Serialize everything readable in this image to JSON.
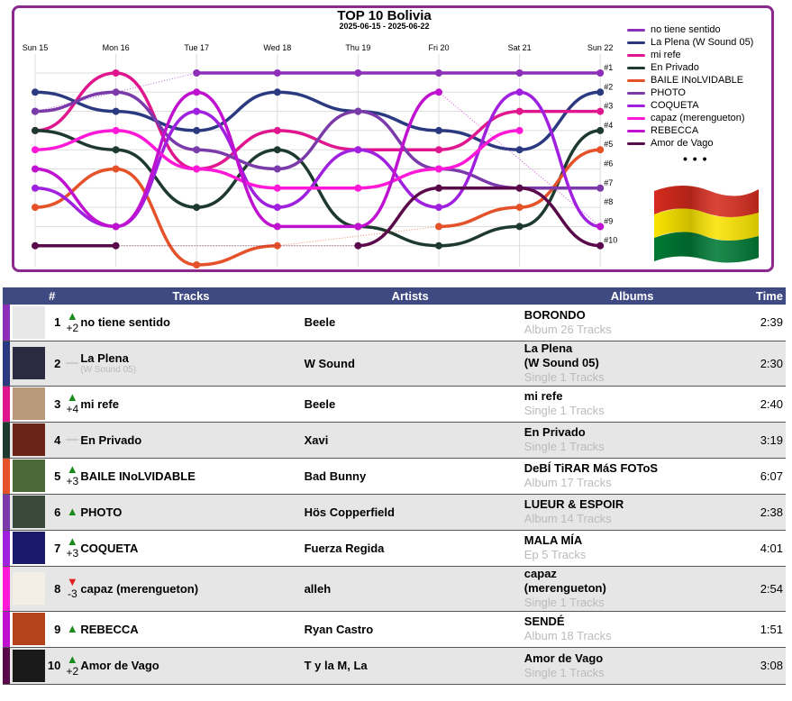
{
  "chart": {
    "title": "TOP 10 Bolivia",
    "subtitle": "2025-06-15 - 2025-06-22",
    "days": [
      "Sun 15",
      "Mon 16",
      "Tue 17",
      "Wed 18",
      "Thu 19",
      "Fri 20",
      "Sat 21",
      "Sun 22"
    ],
    "rank_labels": [
      "#1",
      "#2",
      "#3",
      "#4",
      "#5",
      "#6",
      "#7",
      "#8",
      "#9",
      "#10"
    ],
    "more": "• • •",
    "flag_icon": "bolivia-flag-icon"
  },
  "chart_data": {
    "type": "line",
    "x": [
      "Sun 15",
      "Mon 16",
      "Tue 17",
      "Wed 18",
      "Thu 19",
      "Fri 20",
      "Sat 21",
      "Sun 22"
    ],
    "ylabel": "",
    "y_inverted": true,
    "ylim": [
      1,
      12
    ],
    "series": [
      {
        "name": "no tiene sentido",
        "color": "#8e2fb9",
        "values": [
          3,
          null,
          1,
          1,
          1,
          1,
          1,
          1
        ]
      },
      {
        "name": "La Plena (W Sound 05)",
        "color": "#2b3a80",
        "values": [
          2,
          3,
          4,
          2,
          3,
          4,
          5,
          2
        ]
      },
      {
        "name": "mi refe",
        "color": "#e0168f",
        "values": [
          4,
          1,
          6,
          4,
          5,
          5,
          3,
          3
        ]
      },
      {
        "name": "En Privado",
        "color": "#1e3a2e",
        "values": [
          4,
          5,
          8,
          5,
          9,
          10,
          9,
          4
        ]
      },
      {
        "name": "BAILE INoLVIDABLE",
        "color": "#e5522a",
        "values": [
          8,
          6,
          11,
          10,
          null,
          9,
          8,
          5
        ]
      },
      {
        "name": "PHOTO",
        "color": "#7a3aa9",
        "values": [
          3,
          2,
          5,
          6,
          3,
          6,
          7,
          7
        ]
      },
      {
        "name": "COQUETA",
        "color": "#a020e0",
        "values": [
          7,
          9,
          3,
          8,
          5,
          8,
          2,
          9
        ]
      },
      {
        "name": "capaz (merengueton)",
        "color": "#ff18d8",
        "values": [
          5,
          4,
          6,
          7,
          7,
          6,
          4,
          null
        ]
      },
      {
        "name": "REBECCA",
        "color": "#c010d0",
        "values": [
          6,
          9,
          2,
          9,
          9,
          2,
          null,
          9
        ]
      },
      {
        "name": "Amor de Vago",
        "color": "#5a0a4a",
        "values": [
          10,
          10,
          null,
          null,
          10,
          7,
          7,
          10
        ]
      }
    ]
  },
  "table": {
    "headers": {
      "num": "#",
      "tracks": "Tracks",
      "artists": "Artists",
      "albums": "Albums",
      "time": "Time"
    },
    "rows": [
      {
        "rank": "1",
        "dir": "up",
        "delta": "+2",
        "track": "no tiene sentido",
        "sub": "",
        "artist": "Beele",
        "album": "BORONDO",
        "album_meta": "Album 26 Tracks",
        "time": "2:39",
        "color": "#8e2fb9",
        "thumb": "#e8e8e8"
      },
      {
        "rank": "2",
        "dir": "same",
        "delta": "",
        "track": "La Plena",
        "sub": "(W Sound 05)",
        "artist": "W Sound",
        "album": "La Plena\n(W Sound 05)",
        "album_meta": "Single 1 Tracks",
        "time": "2:30",
        "color": "#2b3a80",
        "thumb": "#2a2a40"
      },
      {
        "rank": "3",
        "dir": "up",
        "delta": "+4",
        "track": "mi refe",
        "sub": "",
        "artist": "Beele",
        "album": "mi refe",
        "album_meta": "Single 1 Tracks",
        "time": "2:40",
        "color": "#e0168f",
        "thumb": "#b89a7a"
      },
      {
        "rank": "4",
        "dir": "same",
        "delta": "",
        "track": "En Privado",
        "sub": "",
        "artist": "Xavi",
        "album": "En Privado",
        "album_meta": "Single 1 Tracks",
        "time": "3:19",
        "color": "#1e3a2e",
        "thumb": "#6a2418"
      },
      {
        "rank": "5",
        "dir": "up",
        "delta": "+3",
        "track": "BAILE INoLVIDABLE",
        "sub": "",
        "artist": "Bad Bunny",
        "album": "DeBÍ TiRAR MáS FOToS",
        "album_meta": "Album 17 Tracks",
        "time": "6:07",
        "color": "#e5522a",
        "thumb": "#4a6a3a"
      },
      {
        "rank": "6",
        "dir": "up",
        "delta": "",
        "track": "PHOTO",
        "sub": "",
        "artist": "Hös Copperfield",
        "album": "LUEUR & ESPOIR",
        "album_meta": "Album 14 Tracks",
        "time": "2:38",
        "color": "#7a3aa9",
        "thumb": "#3a4a3a"
      },
      {
        "rank": "7",
        "dir": "up",
        "delta": "+3",
        "track": "COQUETA",
        "sub": "",
        "artist": "Fuerza Regida",
        "album": "MALA MÍA",
        "album_meta": "Ep 5 Tracks",
        "time": "4:01",
        "color": "#a020e0",
        "thumb": "#1a1a6a"
      },
      {
        "rank": "8",
        "dir": "down",
        "delta": "-3",
        "track": "capaz (merengueton)",
        "sub": "",
        "artist": "alleh",
        "album": "capaz\n(merengueton)",
        "album_meta": "Single 1 Tracks",
        "time": "2:54",
        "color": "#ff18d8",
        "thumb": "#f4efe6"
      },
      {
        "rank": "9",
        "dir": "up",
        "delta": "",
        "track": "REBECCA",
        "sub": "",
        "artist": "Ryan Castro",
        "album": "SENDÉ",
        "album_meta": "Album 18 Tracks",
        "time": "1:51",
        "color": "#c010d0",
        "thumb": "#b4421a"
      },
      {
        "rank": "10",
        "dir": "up",
        "delta": "+2",
        "track": "Amor de Vago",
        "sub": "",
        "artist": "T y la M, La",
        "album": "Amor de Vago",
        "album_meta": "Single 1 Tracks",
        "time": "3:08",
        "color": "#5a0a4a",
        "thumb": "#1a1a1a"
      }
    ]
  }
}
